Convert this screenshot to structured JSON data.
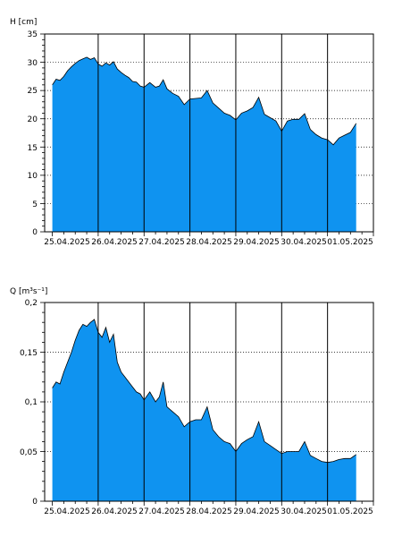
{
  "chart_data": [
    {
      "type": "area",
      "title": "",
      "ylabel": "H [cm]",
      "xlabel": "",
      "ylim": [
        0,
        35
      ],
      "yticks": [
        0,
        5,
        10,
        15,
        20,
        25,
        30,
        35
      ],
      "ytick_labels": [
        "0",
        "5",
        "10",
        "15",
        "20",
        "25",
        "30",
        "35"
      ],
      "xlim": [
        "2025-04-24T20:00",
        "2025-05-02T00:00"
      ],
      "x_day_lines": [
        "2025-04-26",
        "2025-04-27",
        "2025-04-28",
        "2025-04-29",
        "2025-04-30",
        "2025-05-01"
      ],
      "xtick_labels": [
        "25.04.2025",
        "26.04.2025",
        "27.04.2025",
        "28.04.2025",
        "29.04.2025",
        "30.04.2025",
        "01.05.2025"
      ],
      "grid": "horizontal dotted",
      "fill_color": "#0f93f0",
      "series": [
        {
          "x": [
            "2025-04-25T00:00",
            "2025-04-25T02:00",
            "2025-04-25T04:00",
            "2025-04-25T06:00",
            "2025-04-25T08:00",
            "2025-04-25T10:00",
            "2025-04-25T12:00",
            "2025-04-25T14:00",
            "2025-04-25T16:00",
            "2025-04-25T18:00",
            "2025-04-25T20:00",
            "2025-04-25T22:00",
            "2025-04-26T00:00",
            "2025-04-26T02:00",
            "2025-04-26T04:00",
            "2025-04-26T06:00",
            "2025-04-26T08:00",
            "2025-04-26T10:00",
            "2025-04-26T12:00",
            "2025-04-26T14:00",
            "2025-04-26T16:00",
            "2025-04-26T18:00",
            "2025-04-26T20:00",
            "2025-04-26T22:00",
            "2025-04-27T00:00",
            "2025-04-27T03:00",
            "2025-04-27T06:00",
            "2025-04-27T08:00",
            "2025-04-27T10:00",
            "2025-04-27T12:00",
            "2025-04-27T15:00",
            "2025-04-27T18:00",
            "2025-04-27T21:00",
            "2025-04-28T00:00",
            "2025-04-28T03:00",
            "2025-04-28T06:00",
            "2025-04-28T09:00",
            "2025-04-28T12:00",
            "2025-04-28T15:00",
            "2025-04-28T18:00",
            "2025-04-28T21:00",
            "2025-04-29T00:00",
            "2025-04-29T03:00",
            "2025-04-29T06:00",
            "2025-04-29T09:00",
            "2025-04-29T12:00",
            "2025-04-29T15:00",
            "2025-04-29T18:00",
            "2025-04-29T21:00",
            "2025-04-30T00:00",
            "2025-04-30T03:00",
            "2025-04-30T06:00",
            "2025-04-30T09:00",
            "2025-04-30T12:00",
            "2025-04-30T15:00",
            "2025-04-30T18:00",
            "2025-04-30T21:00",
            "2025-05-01T00:00",
            "2025-05-01T03:00",
            "2025-05-01T06:00",
            "2025-05-01T09:00",
            "2025-05-01T12:00",
            "2025-05-01T15:00"
          ],
          "values": [
            26,
            27,
            26.8,
            27.5,
            28.5,
            29.2,
            29.8,
            30.3,
            30.6,
            30.9,
            30.5,
            30.8,
            29.7,
            29.3,
            29.9,
            29.5,
            30.1,
            28.8,
            28.2,
            27.7,
            27.3,
            26.6,
            26.5,
            25.8,
            25.6,
            26.4,
            25.6,
            25.8,
            26.9,
            25.3,
            24.5,
            24.0,
            22.5,
            23.5,
            23.6,
            23.7,
            25.0,
            22.8,
            21.9,
            21.0,
            20.6,
            19.8,
            21.0,
            21.4,
            22.0,
            23.8,
            20.8,
            20.2,
            19.6,
            17.8,
            19.6,
            19.9,
            19.9,
            20.9,
            18.1,
            17.2,
            16.6,
            16.3,
            15.4,
            16.6,
            17.1,
            17.6,
            19.2
          ]
        }
      ]
    },
    {
      "type": "area",
      "title": "",
      "ylabel": "Q [m³s⁻¹]",
      "xlabel": "",
      "ylim": [
        0,
        0.2
      ],
      "yticks": [
        0,
        0.05,
        0.1,
        0.15,
        0.2
      ],
      "ytick_labels": [
        "0",
        "0,05",
        "0,1",
        "0,15",
        "0,2"
      ],
      "xlim": [
        "2025-04-24T20:00",
        "2025-05-02T00:00"
      ],
      "x_day_lines": [
        "2025-04-26",
        "2025-04-27",
        "2025-04-28",
        "2025-04-29",
        "2025-04-30",
        "2025-05-01"
      ],
      "xtick_labels": [
        "25.04.2025",
        "26.04.2025",
        "27.04.2025",
        "28.04.2025",
        "29.04.2025",
        "30.04.2025",
        "01.05.2025"
      ],
      "grid": "horizontal dotted",
      "fill_color": "#0f93f0",
      "series": [
        {
          "x": [
            "2025-04-25T00:00",
            "2025-04-25T02:00",
            "2025-04-25T04:00",
            "2025-04-25T06:00",
            "2025-04-25T08:00",
            "2025-04-25T10:00",
            "2025-04-25T12:00",
            "2025-04-25T14:00",
            "2025-04-25T16:00",
            "2025-04-25T18:00",
            "2025-04-25T20:00",
            "2025-04-25T22:00",
            "2025-04-26T00:00",
            "2025-04-26T02:00",
            "2025-04-26T04:00",
            "2025-04-26T06:00",
            "2025-04-26T08:00",
            "2025-04-26T10:00",
            "2025-04-26T12:00",
            "2025-04-26T14:00",
            "2025-04-26T16:00",
            "2025-04-26T18:00",
            "2025-04-26T20:00",
            "2025-04-26T22:00",
            "2025-04-27T00:00",
            "2025-04-27T03:00",
            "2025-04-27T06:00",
            "2025-04-27T08:00",
            "2025-04-27T10:00",
            "2025-04-27T12:00",
            "2025-04-27T15:00",
            "2025-04-27T18:00",
            "2025-04-27T21:00",
            "2025-04-28T00:00",
            "2025-04-28T03:00",
            "2025-04-28T06:00",
            "2025-04-28T09:00",
            "2025-04-28T12:00",
            "2025-04-28T15:00",
            "2025-04-28T18:00",
            "2025-04-28T21:00",
            "2025-04-29T00:00",
            "2025-04-29T03:00",
            "2025-04-29T06:00",
            "2025-04-29T09:00",
            "2025-04-29T12:00",
            "2025-04-29T15:00",
            "2025-04-29T18:00",
            "2025-04-29T21:00",
            "2025-04-30T00:00",
            "2025-04-30T03:00",
            "2025-04-30T06:00",
            "2025-04-30T09:00",
            "2025-04-30T12:00",
            "2025-04-30T15:00",
            "2025-04-30T18:00",
            "2025-04-30T21:00",
            "2025-05-01T00:00",
            "2025-05-01T03:00",
            "2025-05-01T06:00",
            "2025-05-01T09:00",
            "2025-05-01T12:00",
            "2025-05-01T15:00"
          ],
          "values": [
            0.114,
            0.12,
            0.118,
            0.13,
            0.14,
            0.15,
            0.162,
            0.172,
            0.178,
            0.176,
            0.18,
            0.183,
            0.17,
            0.165,
            0.175,
            0.16,
            0.168,
            0.14,
            0.13,
            0.125,
            0.12,
            0.115,
            0.11,
            0.108,
            0.102,
            0.11,
            0.1,
            0.105,
            0.12,
            0.095,
            0.09,
            0.085,
            0.075,
            0.08,
            0.082,
            0.082,
            0.095,
            0.072,
            0.065,
            0.06,
            0.058,
            0.05,
            0.058,
            0.062,
            0.065,
            0.08,
            0.06,
            0.056,
            0.052,
            0.048,
            0.05,
            0.05,
            0.05,
            0.06,
            0.046,
            0.043,
            0.04,
            0.039,
            0.04,
            0.042,
            0.043,
            0.043,
            0.047
          ]
        }
      ]
    }
  ]
}
